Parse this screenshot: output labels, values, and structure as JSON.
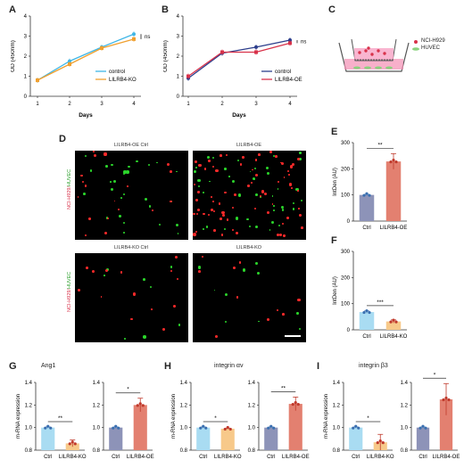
{
  "panels": {
    "A": {
      "label": "A",
      "chart_data": {
        "type": "line",
        "x": [
          1,
          2,
          3,
          4
        ],
        "series": [
          {
            "name": "control",
            "values": [
              0.8,
              1.75,
              2.45,
              3.1
            ],
            "color": "#3fb6e6"
          },
          {
            "name": "LILRB4-KO",
            "values": [
              0.8,
              1.6,
              2.4,
              2.85
            ],
            "color": "#f0a030"
          }
        ],
        "xlabel": "Days",
        "ylabel": "OD (450nm)",
        "ylim": [
          0,
          4
        ],
        "yticks": [
          "0",
          "1",
          "2",
          "3",
          "4"
        ],
        "xticks": [
          "1",
          "2",
          "3",
          "4"
        ],
        "annotation": "ns"
      }
    },
    "B": {
      "label": "B",
      "chart_data": {
        "type": "line",
        "x": [
          1,
          2,
          3,
          4
        ],
        "series": [
          {
            "name": "control",
            "values": [
              0.9,
              2.15,
              2.45,
              2.8
            ],
            "color": "#2c3e8c"
          },
          {
            "name": "LILRB4-OE",
            "values": [
              1.0,
              2.2,
              2.2,
              2.65
            ],
            "color": "#d8324a"
          }
        ],
        "xlabel": "Days",
        "ylabel": "OD (450nm)",
        "ylim": [
          0,
          4
        ],
        "yticks": [
          "0",
          "1",
          "2",
          "3",
          "4"
        ],
        "xticks": [
          "1",
          "2",
          "3",
          "4"
        ],
        "annotation": "ns"
      }
    },
    "C": {
      "label": "C",
      "legend": [
        "NCI-H929",
        "HUVEC"
      ]
    },
    "D": {
      "label": "D",
      "images": [
        {
          "title": "LILRB4-OE Ctrl"
        },
        {
          "title": "LILRB4-OE"
        },
        {
          "title": "LILRB4-KO Ctrl"
        },
        {
          "title": "LILRB4-KO"
        }
      ],
      "ylabel_red": "NCI-H929/",
      "ylabel_green": "HUVEC"
    },
    "E": {
      "label": "E",
      "chart_data": {
        "type": "bar",
        "categories": [
          "Ctrl",
          "LILRB4-OE"
        ],
        "values": [
          100,
          228
        ],
        "errors": [
          2,
          30
        ],
        "colors": [
          "#8d93b8",
          "#e38070"
        ],
        "ylabel": "IntDen (AU)",
        "ylim": [
          0,
          300
        ],
        "yticks": [
          "0",
          "100",
          "200",
          "300"
        ],
        "annotation": "**"
      }
    },
    "F": {
      "label": "F",
      "chart_data": {
        "type": "bar",
        "categories": [
          "Ctrl",
          "LILRB4-KO"
        ],
        "values": [
          68,
          32
        ],
        "errors": [
          4,
          6
        ],
        "colors": [
          "#a9dcf2",
          "#f7c98a"
        ],
        "ylabel": "IntDen (AU)",
        "ylim": [
          0,
          300
        ],
        "yticks": [
          "0",
          "100",
          "200",
          "300"
        ],
        "annotation": "***"
      }
    },
    "G": {
      "label": "G",
      "title": "Ang1",
      "chart_data": [
        {
          "type": "bar",
          "categories": [
            "Ctrl",
            "LILRB4-KO"
          ],
          "values": [
            1.0,
            0.86
          ],
          "errors": [
            0.005,
            0.03
          ],
          "colors": [
            "#a9dcf2",
            "#f7c98a"
          ],
          "ylabel": "m-RNA expression",
          "ylim": [
            0.8,
            1.4
          ],
          "yticks": [
            "0.8",
            "1.0",
            "1.2",
            "1.4"
          ],
          "annotation": "**"
        },
        {
          "type": "bar",
          "categories": [
            "Ctrl",
            "LILRB4-OE"
          ],
          "values": [
            1.0,
            1.2
          ],
          "errors": [
            0.005,
            0.06
          ],
          "colors": [
            "#8d93b8",
            "#e38070"
          ],
          "ylabel": "",
          "ylim": [
            0.8,
            1.4
          ],
          "yticks": [
            "0.8",
            "1.0",
            "1.2",
            "1.4"
          ],
          "annotation": "*"
        }
      ]
    },
    "H": {
      "label": "H",
      "title": "integrin αv",
      "chart_data": [
        {
          "type": "bar",
          "categories": [
            "Ctrl",
            "LILRB4-KO"
          ],
          "values": [
            1.0,
            0.99
          ],
          "errors": [
            0.005,
            0.005
          ],
          "colors": [
            "#a9dcf2",
            "#f7c98a"
          ],
          "ylabel": "m-RNA expression",
          "ylim": [
            0.8,
            1.4
          ],
          "yticks": [
            "0.8",
            "1.0",
            "1.2",
            "1.4"
          ],
          "annotation": "*"
        },
        {
          "type": "bar",
          "categories": [
            "Ctrl",
            "LILRB4-OE"
          ],
          "values": [
            1.0,
            1.21
          ],
          "errors": [
            0.005,
            0.06
          ],
          "colors": [
            "#8d93b8",
            "#e38070"
          ],
          "ylabel": "",
          "ylim": [
            0.8,
            1.4
          ],
          "yticks": [
            "0.8",
            "1.0",
            "1.2",
            "1.4"
          ],
          "annotation": "**"
        }
      ]
    },
    "I": {
      "label": "I",
      "title": "integrin β3",
      "chart_data": [
        {
          "type": "bar",
          "categories": [
            "Ctrl",
            "LILRB4-KO"
          ],
          "values": [
            1.0,
            0.87
          ],
          "errors": [
            0.005,
            0.07
          ],
          "colors": [
            "#a9dcf2",
            "#f7c98a"
          ],
          "ylabel": "m-RNA expression",
          "ylim": [
            0.8,
            1.4
          ],
          "yticks": [
            "0.8",
            "1.0",
            "1.2",
            "1.4"
          ],
          "annotation": "*"
        },
        {
          "type": "bar",
          "categories": [
            "Ctrl",
            "LILRB4-OE"
          ],
          "values": [
            1.0,
            1.25
          ],
          "errors": [
            0.005,
            0.14
          ],
          "colors": [
            "#8d93b8",
            "#e38070"
          ],
          "ylabel": "",
          "ylim": [
            0.8,
            1.4
          ],
          "yticks": [
            "0.8",
            "1.0",
            "1.2",
            "1.4"
          ],
          "annotation": "*"
        }
      ]
    }
  }
}
